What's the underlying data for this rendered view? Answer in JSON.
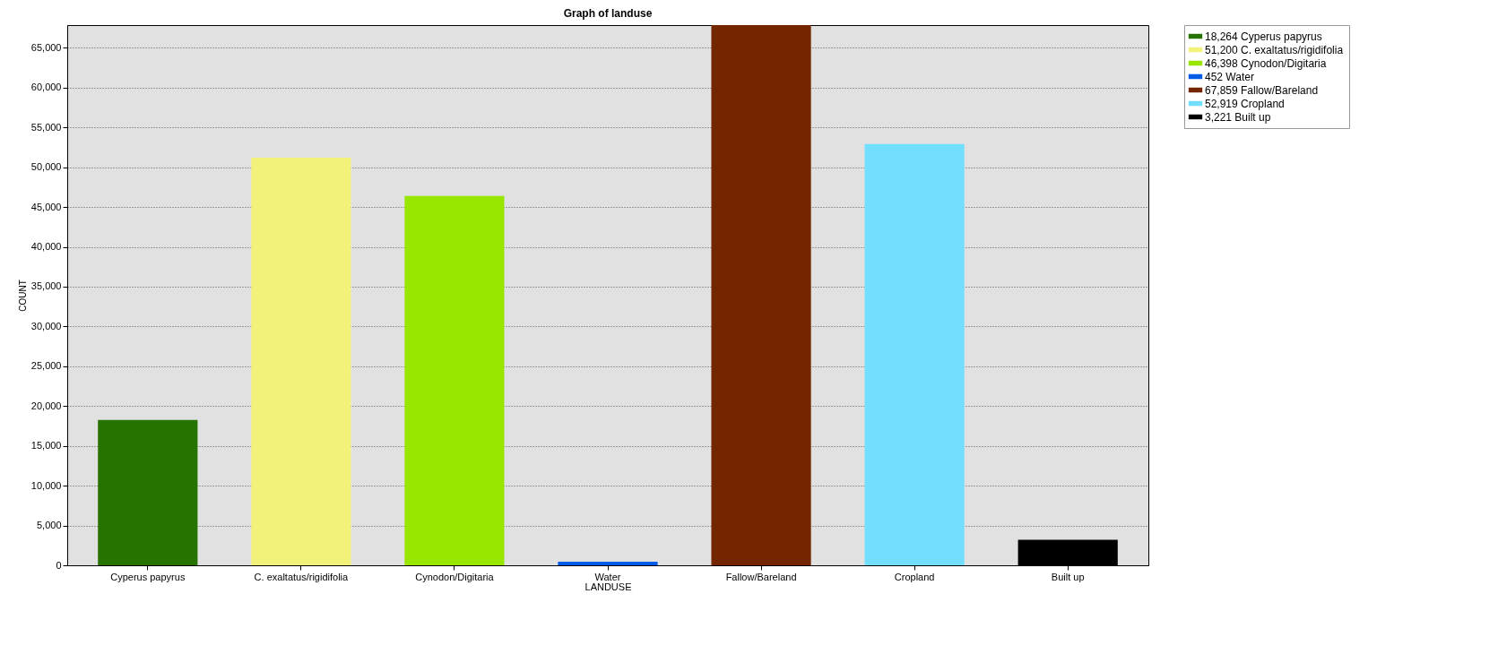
{
  "chart_data": {
    "type": "bar",
    "title": "Graph of landuse",
    "xlabel": "LANDUSE",
    "ylabel": "COUNT",
    "categories": [
      "Cyperus papyrus",
      "C. exaltatus/rigidifolia",
      "Cynodon/Digitaria",
      "Water",
      "Fallow/Bareland",
      "Cropland",
      "Built up"
    ],
    "series": [
      {
        "name": "18,264 Cyperus papyrus",
        "color": "#267300",
        "values": [
          18264,
          null,
          null,
          null,
          null,
          null,
          null
        ]
      },
      {
        "name": "51,200 C. exaltatus/rigidifolia",
        "color": "#f2f27b",
        "values": [
          null,
          51200,
          null,
          null,
          null,
          null,
          null
        ]
      },
      {
        "name": "46,398 Cynodon/Digitaria",
        "color": "#98e600",
        "values": [
          null,
          null,
          46398,
          null,
          null,
          null,
          null
        ]
      },
      {
        "name": "452 Water",
        "color": "#005ce6",
        "values": [
          null,
          null,
          null,
          452,
          null,
          null,
          null
        ]
      },
      {
        "name": "67,859 Fallow/Bareland",
        "color": "#732600",
        "values": [
          null,
          null,
          null,
          null,
          67859,
          null,
          null
        ]
      },
      {
        "name": "52,919 Cropland",
        "color": "#73dfff",
        "values": [
          null,
          null,
          null,
          null,
          null,
          52919,
          null
        ]
      },
      {
        "name": "3,221 Built up",
        "color": "#000000",
        "values": [
          null,
          null,
          null,
          null,
          null,
          null,
          3221
        ]
      }
    ],
    "stacked": true,
    "ylim": [
      0,
      67859
    ],
    "yticks": [
      0,
      {
        "value": 5000,
        "label": "5,000"
      },
      {
        "value": 10000,
        "label": "10,000"
      },
      {
        "value": 15000,
        "label": "15,000"
      },
      {
        "value": 20000,
        "label": "20,000"
      },
      {
        "value": 25000,
        "label": "25,000"
      },
      {
        "value": 30000,
        "label": "30,000"
      },
      {
        "value": 35000,
        "label": "35,000"
      },
      {
        "value": 40000,
        "label": "40,000"
      },
      {
        "value": 45000,
        "label": "45,000"
      },
      {
        "value": 50000,
        "label": "50,000"
      },
      {
        "value": 55000,
        "label": "55,000"
      },
      {
        "value": 60000,
        "label": "60,000"
      },
      {
        "value": 65000,
        "label": "65,000"
      }
    ],
    "grid": "y",
    "legend": "top right"
  }
}
